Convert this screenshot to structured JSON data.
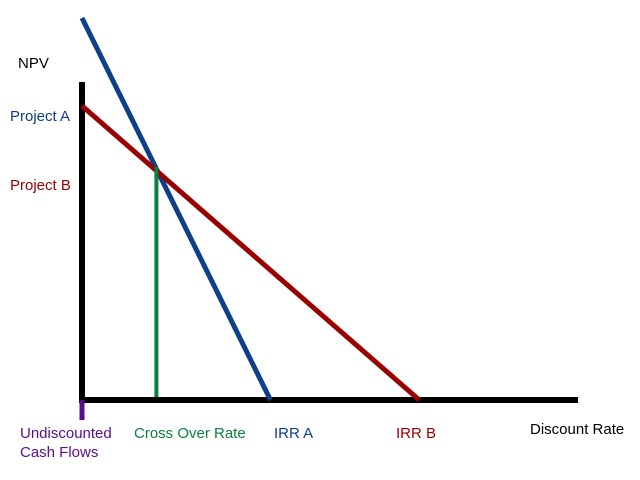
{
  "chart_data": {
    "type": "line",
    "title": "",
    "ylabel": "NPV",
    "xlabel": "Discount Rate",
    "xlim": [
      0,
      100
    ],
    "ylim": [
      0,
      100
    ],
    "series": [
      {
        "name": "Project A",
        "color": "#0d3f8a",
        "points": [
          [
            0,
            100
          ],
          [
            38,
            0
          ]
        ]
      },
      {
        "name": "Project B",
        "color": "#990000",
        "points": [
          [
            0,
            77
          ],
          [
            68,
            0
          ]
        ]
      }
    ],
    "crossover": {
      "label": "Cross Over Rate",
      "x": 15,
      "y": 61,
      "color": "#0c8040"
    },
    "annotations": {
      "undiscounted": {
        "label_line1": "Undiscounted",
        "label_line2": "Cash Flows",
        "color": "#5b0c8f"
      },
      "irr_a": {
        "label": "IRR A",
        "x": 38,
        "color": "#0d3f8a"
      },
      "irr_b": {
        "label": "IRR B",
        "x": 68,
        "color": "#990000"
      }
    },
    "colors": {
      "axis": "#000000",
      "text": "#000000"
    }
  }
}
